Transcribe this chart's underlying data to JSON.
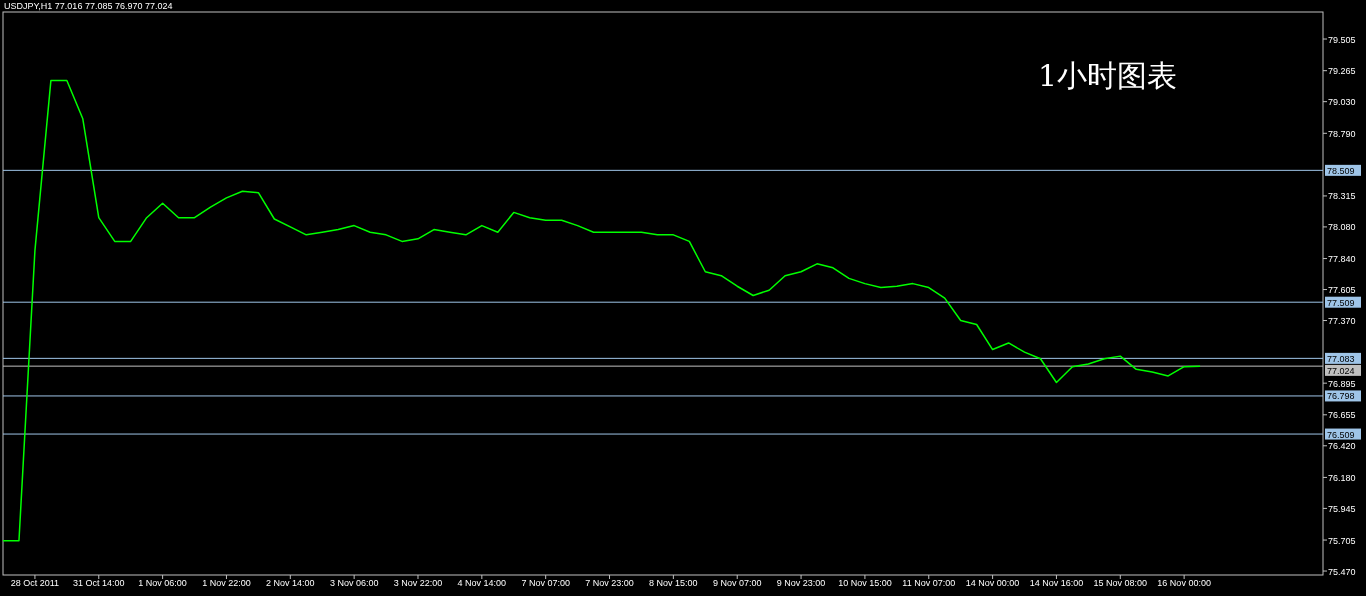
{
  "chart_data": {
    "type": "line",
    "title": "USDJPY,H1  77.016 77.085 76.970 77.024",
    "annotations": [
      "1小时图表"
    ],
    "categories": [
      null,
      null,
      "28 Oct 2011",
      null,
      null,
      null,
      "31 Oct 14:00",
      null,
      null,
      null,
      "1 Nov 06:00",
      null,
      null,
      null,
      "1 Nov 22:00",
      null,
      null,
      null,
      "2 Nov 14:00",
      null,
      null,
      null,
      "3 Nov 06:00",
      null,
      null,
      null,
      "3 Nov 22:00",
      null,
      null,
      null,
      "4 Nov 14:00",
      null,
      null,
      null,
      "7 Nov 07:00",
      null,
      null,
      null,
      "7 Nov 23:00",
      null,
      null,
      null,
      "8 Nov 15:00",
      null,
      null,
      null,
      "9 Nov 07:00",
      null,
      null,
      null,
      "9 Nov 23:00",
      null,
      null,
      null,
      "10 Nov 15:00",
      null,
      null,
      null,
      "11 Nov 07:00",
      null,
      null,
      null,
      "14 Nov 00:00",
      null,
      null,
      null,
      "14 Nov 16:00",
      null,
      null,
      null,
      "15 Nov 08:00",
      null,
      null,
      null,
      "16 Nov 00:00",
      null,
      null,
      null,
      null,
      null,
      null,
      null,
      null
    ],
    "series": [
      {
        "color": "#00ff00",
        "values": [
          75.7,
          75.7,
          77.9,
          79.19,
          79.19,
          78.9,
          78.15,
          77.97,
          77.97,
          78.15,
          78.26,
          78.15,
          78.15,
          78.23,
          78.3,
          78.35,
          78.34,
          78.14,
          78.08,
          78.02,
          78.04,
          78.06,
          78.09,
          78.04,
          78.02,
          77.97,
          77.99,
          78.06,
          78.04,
          78.02,
          78.09,
          78.04,
          78.19,
          78.15,
          78.13,
          78.13,
          78.09,
          78.04,
          78.04,
          78.04,
          78.04,
          78.02,
          78.02,
          77.97,
          77.74,
          77.71,
          77.63,
          77.56,
          77.6,
          77.71,
          77.74,
          77.8,
          77.77,
          77.69,
          77.65,
          77.62,
          77.63,
          77.65,
          77.62,
          77.54,
          77.37,
          77.34,
          77.15,
          77.2,
          77.13,
          77.08,
          76.9,
          77.02,
          77.04,
          77.08,
          77.1,
          77.0,
          76.98,
          76.95,
          77.02,
          77.024,
          null,
          null,
          null,
          null,
          null,
          null,
          null
        ]
      }
    ],
    "ylim": [
      75.44,
      79.71
    ],
    "yticks": [
      {
        "value": 79.505,
        "label": "79.505"
      },
      {
        "value": 79.265,
        "label": "79.265"
      },
      {
        "value": 79.03,
        "label": "79.030"
      },
      {
        "value": 78.79,
        "label": "78.790"
      },
      {
        "value": 78.315,
        "label": "78.315"
      },
      {
        "value": 78.08,
        "label": "78.080"
      },
      {
        "value": 77.84,
        "label": "77.840"
      },
      {
        "value": 77.605,
        "label": "77.605"
      },
      {
        "value": 77.37,
        "label": "77.370"
      },
      {
        "value": 76.895,
        "label": "76.895"
      },
      {
        "value": 76.655,
        "label": "76.655"
      },
      {
        "value": 76.42,
        "label": "76.420"
      },
      {
        "value": 76.18,
        "label": "76.180"
      },
      {
        "value": 75.945,
        "label": "75.945"
      },
      {
        "value": 75.705,
        "label": "75.705"
      },
      {
        "value": 75.47,
        "label": "75.470"
      }
    ],
    "ref_lines": [
      {
        "axis": "y",
        "value": 78.509,
        "label": "78.509",
        "color": "#9fc5e8"
      },
      {
        "axis": "y",
        "value": 77.509,
        "label": "77.509",
        "color": "#9fc5e8"
      },
      {
        "axis": "y",
        "value": 77.083,
        "label": "77.083",
        "color": "#9fc5e8"
      },
      {
        "axis": "y",
        "value": 77.024,
        "label": "77.024",
        "color": "#c0c0c0"
      },
      {
        "axis": "y",
        "value": 76.798,
        "label": "76.798",
        "color": "#9fc5e8"
      },
      {
        "axis": "y",
        "value": 76.509,
        "label": "76.509",
        "color": "#9fc5e8"
      }
    ],
    "grid": false
  }
}
